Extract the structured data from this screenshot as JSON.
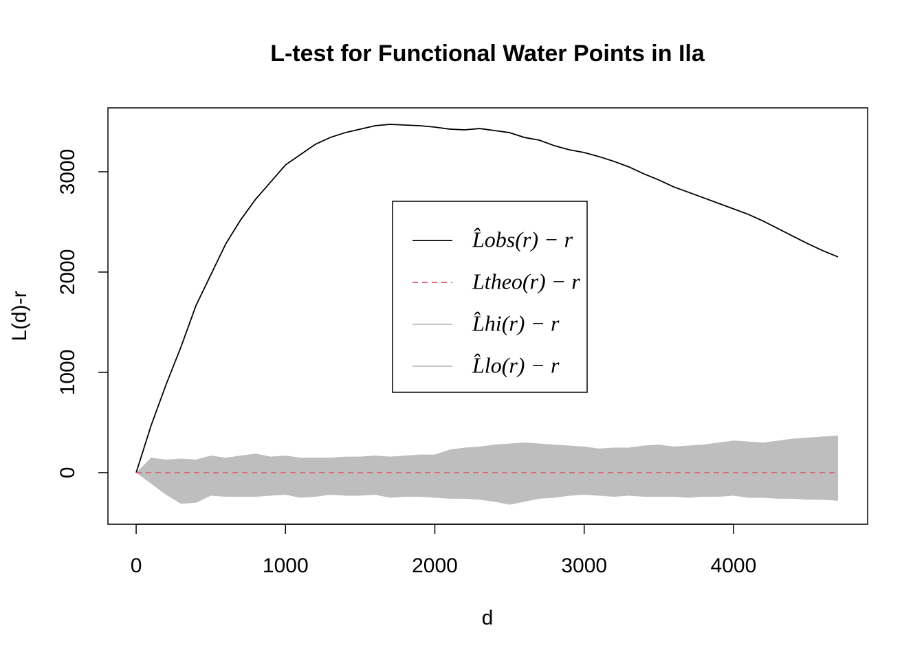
{
  "chart_data": {
    "type": "line",
    "title": "L-test for Functional Water Points in Ila",
    "x_label": "d",
    "y_label": "L(d)-r",
    "x": [
      0,
      100,
      200,
      300,
      400,
      500,
      600,
      700,
      800,
      900,
      1000,
      1100,
      1200,
      1300,
      1400,
      1500,
      1600,
      1700,
      1800,
      1900,
      2000,
      2100,
      2200,
      2300,
      2400,
      2500,
      2600,
      2700,
      2800,
      2900,
      3000,
      3100,
      3200,
      3300,
      3400,
      3500,
      3600,
      3700,
      3800,
      3900,
      4000,
      4100,
      4200,
      4300,
      4400,
      4500,
      4600,
      4700
    ],
    "series": [
      {
        "name": "L̂obs(r) − r",
        "color": "#000000",
        "style": "solid",
        "values": [
          0,
          470,
          877,
          1253,
          1664,
          1973,
          2281,
          2521,
          2726,
          2897,
          3068,
          3171,
          3274,
          3342,
          3390,
          3425,
          3459,
          3473,
          3466,
          3459,
          3445,
          3425,
          3418,
          3431,
          3411,
          3390,
          3342,
          3315,
          3260,
          3219,
          3192,
          3151,
          3103,
          3048,
          2979,
          2918,
          2849,
          2795,
          2740,
          2685,
          2630,
          2575,
          2507,
          2432,
          2356,
          2281,
          2212,
          2151
        ]
      },
      {
        "name": "Ltheo(r) − r",
        "color": "#DF536B",
        "style": "dashed",
        "values": [
          0,
          0,
          0,
          0,
          0,
          0,
          0,
          0,
          0,
          0,
          0,
          0,
          0,
          0,
          0,
          0,
          0,
          0,
          0,
          0,
          0,
          0,
          0,
          0,
          0,
          0,
          0,
          0,
          0,
          0,
          0,
          0,
          0,
          0,
          0,
          0,
          0,
          0,
          0,
          0,
          0,
          0,
          0,
          0,
          0,
          0,
          0,
          0
        ]
      },
      {
        "name": "L̂hi(r) − r",
        "color": "#BEBEBE",
        "style": "band-upper",
        "values": [
          0,
          150,
          130,
          140,
          130,
          170,
          150,
          170,
          190,
          160,
          170,
          150,
          150,
          150,
          160,
          160,
          170,
          160,
          170,
          180,
          180,
          230,
          250,
          260,
          280,
          290,
          300,
          290,
          280,
          270,
          260,
          240,
          250,
          250,
          270,
          280,
          260,
          270,
          280,
          300,
          320,
          310,
          300,
          320,
          340,
          350,
          360,
          370
        ]
      },
      {
        "name": "L̂lo(r) − r",
        "color": "#BEBEBE",
        "style": "band-lower",
        "values": [
          0,
          -110,
          -220,
          -310,
          -300,
          -230,
          -240,
          -240,
          -240,
          -230,
          -220,
          -250,
          -240,
          -220,
          -230,
          -230,
          -220,
          -250,
          -240,
          -240,
          -250,
          -260,
          -260,
          -270,
          -290,
          -320,
          -290,
          -260,
          -250,
          -230,
          -220,
          -230,
          -240,
          -230,
          -240,
          -240,
          -240,
          -250,
          -240,
          -240,
          -230,
          -250,
          -250,
          -260,
          -260,
          -270,
          -270,
          -280
        ]
      }
    ],
    "xlim": [
      -189,
      4898
    ],
    "ylim": [
      -514,
      3637
    ],
    "xticks": [
      0,
      1000,
      2000,
      3000,
      4000
    ],
    "yticks": [
      0,
      1000,
      2000,
      3000
    ],
    "legend": "center"
  }
}
